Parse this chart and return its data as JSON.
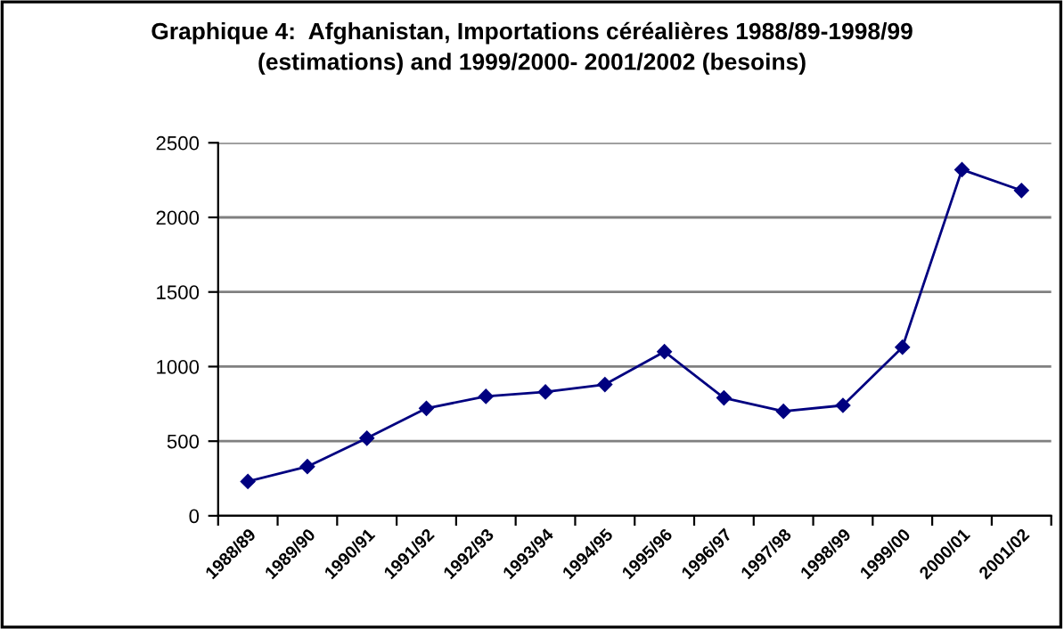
{
  "chart_data": {
    "type": "line",
    "title": "Graphique 4:  Afghanistan, Importations céréalières 1988/89-1998/99\n(estimations) and 1999/2000- 2001/2002 (besoins)",
    "categories": [
      "1988/89",
      "1989/90",
      "1990/91",
      "1991/92",
      "1992/93",
      "1993/94",
      "1994/95",
      "1995/96",
      "1996/97",
      "1997/98",
      "1998/99",
      "1999/00",
      "2000/01",
      "2001/02"
    ],
    "series": [
      {
        "color": "#000080",
        "values": [
          230,
          330,
          520,
          720,
          800,
          830,
          880,
          1100,
          790,
          700,
          740,
          1130,
          2320,
          2180
        ]
      }
    ],
    "ylim": [
      0,
      2500
    ],
    "yticks": [
      0,
      500,
      1000,
      1500,
      2000,
      2500
    ],
    "grid": "y",
    "legend": false,
    "marker": "diamond",
    "line_style": "solid"
  }
}
